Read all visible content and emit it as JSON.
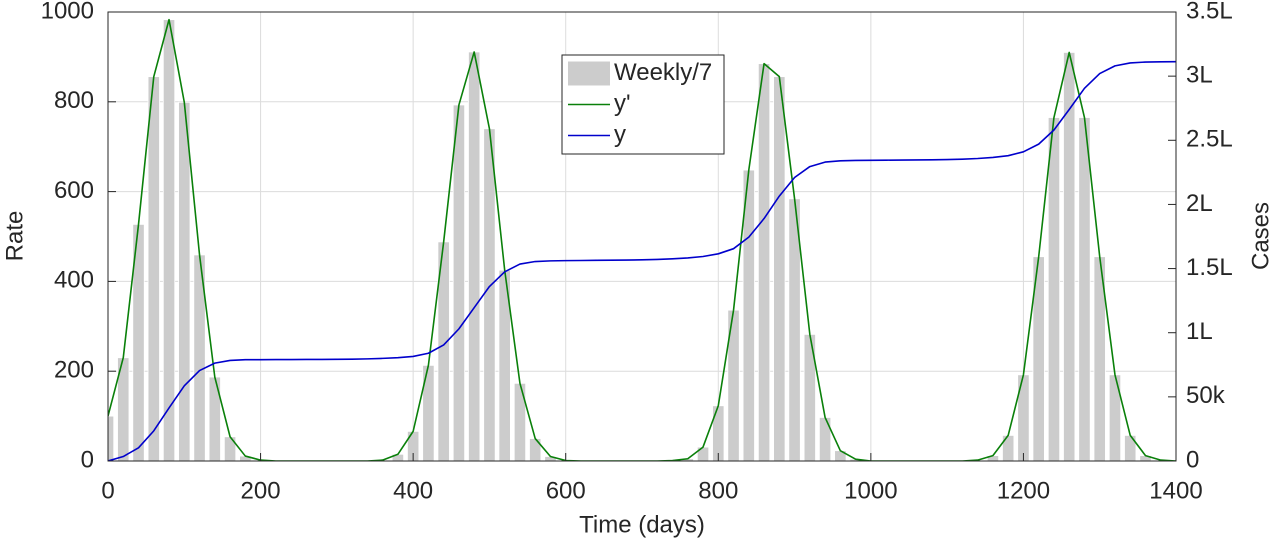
{
  "chart_data": {
    "type": "bar",
    "xlabel": "Time (days)",
    "ylabel": "Rate",
    "y2label": "Cases",
    "xlim": [
      0,
      1400
    ],
    "xticks": [
      0,
      200,
      400,
      600,
      800,
      1000,
      1200,
      1400
    ],
    "ylim": [
      0,
      1000
    ],
    "yticks": [
      0,
      200,
      400,
      600,
      800,
      1000
    ],
    "y2lim": [
      0,
      350000
    ],
    "y2ticks": [
      0,
      {
        "value": 50000,
        "label": "50k"
      },
      {
        "value": 100000,
        "label": "1L"
      },
      {
        "value": 150000,
        "label": "1.5L"
      },
      {
        "value": 200000,
        "label": "2L"
      },
      {
        "value": 250000,
        "label": "2.5L"
      },
      {
        "value": 300000,
        "label": "3L"
      },
      {
        "value": 350000,
        "label": "3.5L"
      }
    ],
    "grid": true,
    "legend_position": "upper center",
    "x": [
      0,
      20,
      40,
      60,
      80,
      100,
      120,
      140,
      160,
      180,
      200,
      220,
      240,
      260,
      280,
      300,
      320,
      340,
      360,
      380,
      400,
      420,
      440,
      460,
      480,
      500,
      520,
      540,
      560,
      580,
      600,
      620,
      640,
      660,
      680,
      700,
      720,
      740,
      760,
      780,
      800,
      820,
      840,
      860,
      880,
      900,
      920,
      940,
      960,
      980,
      1000,
      1020,
      1040,
      1060,
      1080,
      1100,
      1120,
      1140,
      1160,
      1180,
      1200,
      1220,
      1240,
      1260,
      1280,
      1300,
      1320,
      1340,
      1360,
      1380,
      1400
    ],
    "series": [
      {
        "name": "Weekly/7",
        "type": "bar",
        "color": "#cccccc",
        "values": [
          100,
          230,
          527,
          856,
          983,
          799,
          459,
          187,
          54,
          11,
          2,
          0,
          0,
          0,
          0,
          0,
          0,
          0,
          2,
          15,
          66,
          213,
          488,
          793,
          911,
          740,
          425,
          173,
          50,
          10,
          1,
          0,
          0,
          0,
          0,
          0,
          0,
          1,
          5,
          31,
          123,
          336,
          648,
          885,
          856,
          584,
          282,
          97,
          23,
          4,
          0,
          0,
          0,
          0,
          0,
          0,
          0,
          2,
          12,
          57,
          192,
          455,
          765,
          910,
          765,
          455,
          192,
          57,
          12,
          2,
          0
        ]
      },
      {
        "name": "y'",
        "type": "line",
        "color": "#0a800a",
        "values": [
          100,
          230,
          527,
          856,
          983,
          799,
          459,
          187,
          54,
          11,
          2,
          0,
          0,
          0,
          0,
          0,
          0,
          0,
          2,
          15,
          66,
          213,
          488,
          793,
          911,
          740,
          425,
          173,
          50,
          10,
          1,
          0,
          0,
          0,
          0,
          0,
          0,
          1,
          5,
          31,
          123,
          336,
          648,
          885,
          856,
          584,
          282,
          97,
          23,
          4,
          0,
          0,
          0,
          0,
          0,
          0,
          0,
          2,
          12,
          57,
          192,
          455,
          765,
          910,
          765,
          455,
          192,
          57,
          12,
          2,
          0
        ]
      },
      {
        "name": "y",
        "type": "line",
        "axis": "y2",
        "color": "#0000cc",
        "values": [
          0,
          3500,
          10300,
          23500,
          41400,
          58600,
          70500,
          76300,
          78400,
          79000,
          79000,
          79100,
          79100,
          79200,
          79200,
          79300,
          79400,
          79600,
          80000,
          80500,
          81500,
          84000,
          90500,
          103000,
          119500,
          136000,
          147500,
          153500,
          155500,
          156000,
          156200,
          156300,
          156400,
          156500,
          156600,
          156800,
          157100,
          157600,
          158300,
          159400,
          161500,
          165500,
          174500,
          189000,
          206500,
          221000,
          229500,
          233000,
          234000,
          234300,
          234400,
          234500,
          234600,
          234700,
          234800,
          235000,
          235300,
          235800,
          236600,
          238000,
          241000,
          247000,
          258000,
          274000,
          290500,
          302000,
          308000,
          310300,
          311000,
          311200,
          311300
        ]
      }
    ]
  }
}
